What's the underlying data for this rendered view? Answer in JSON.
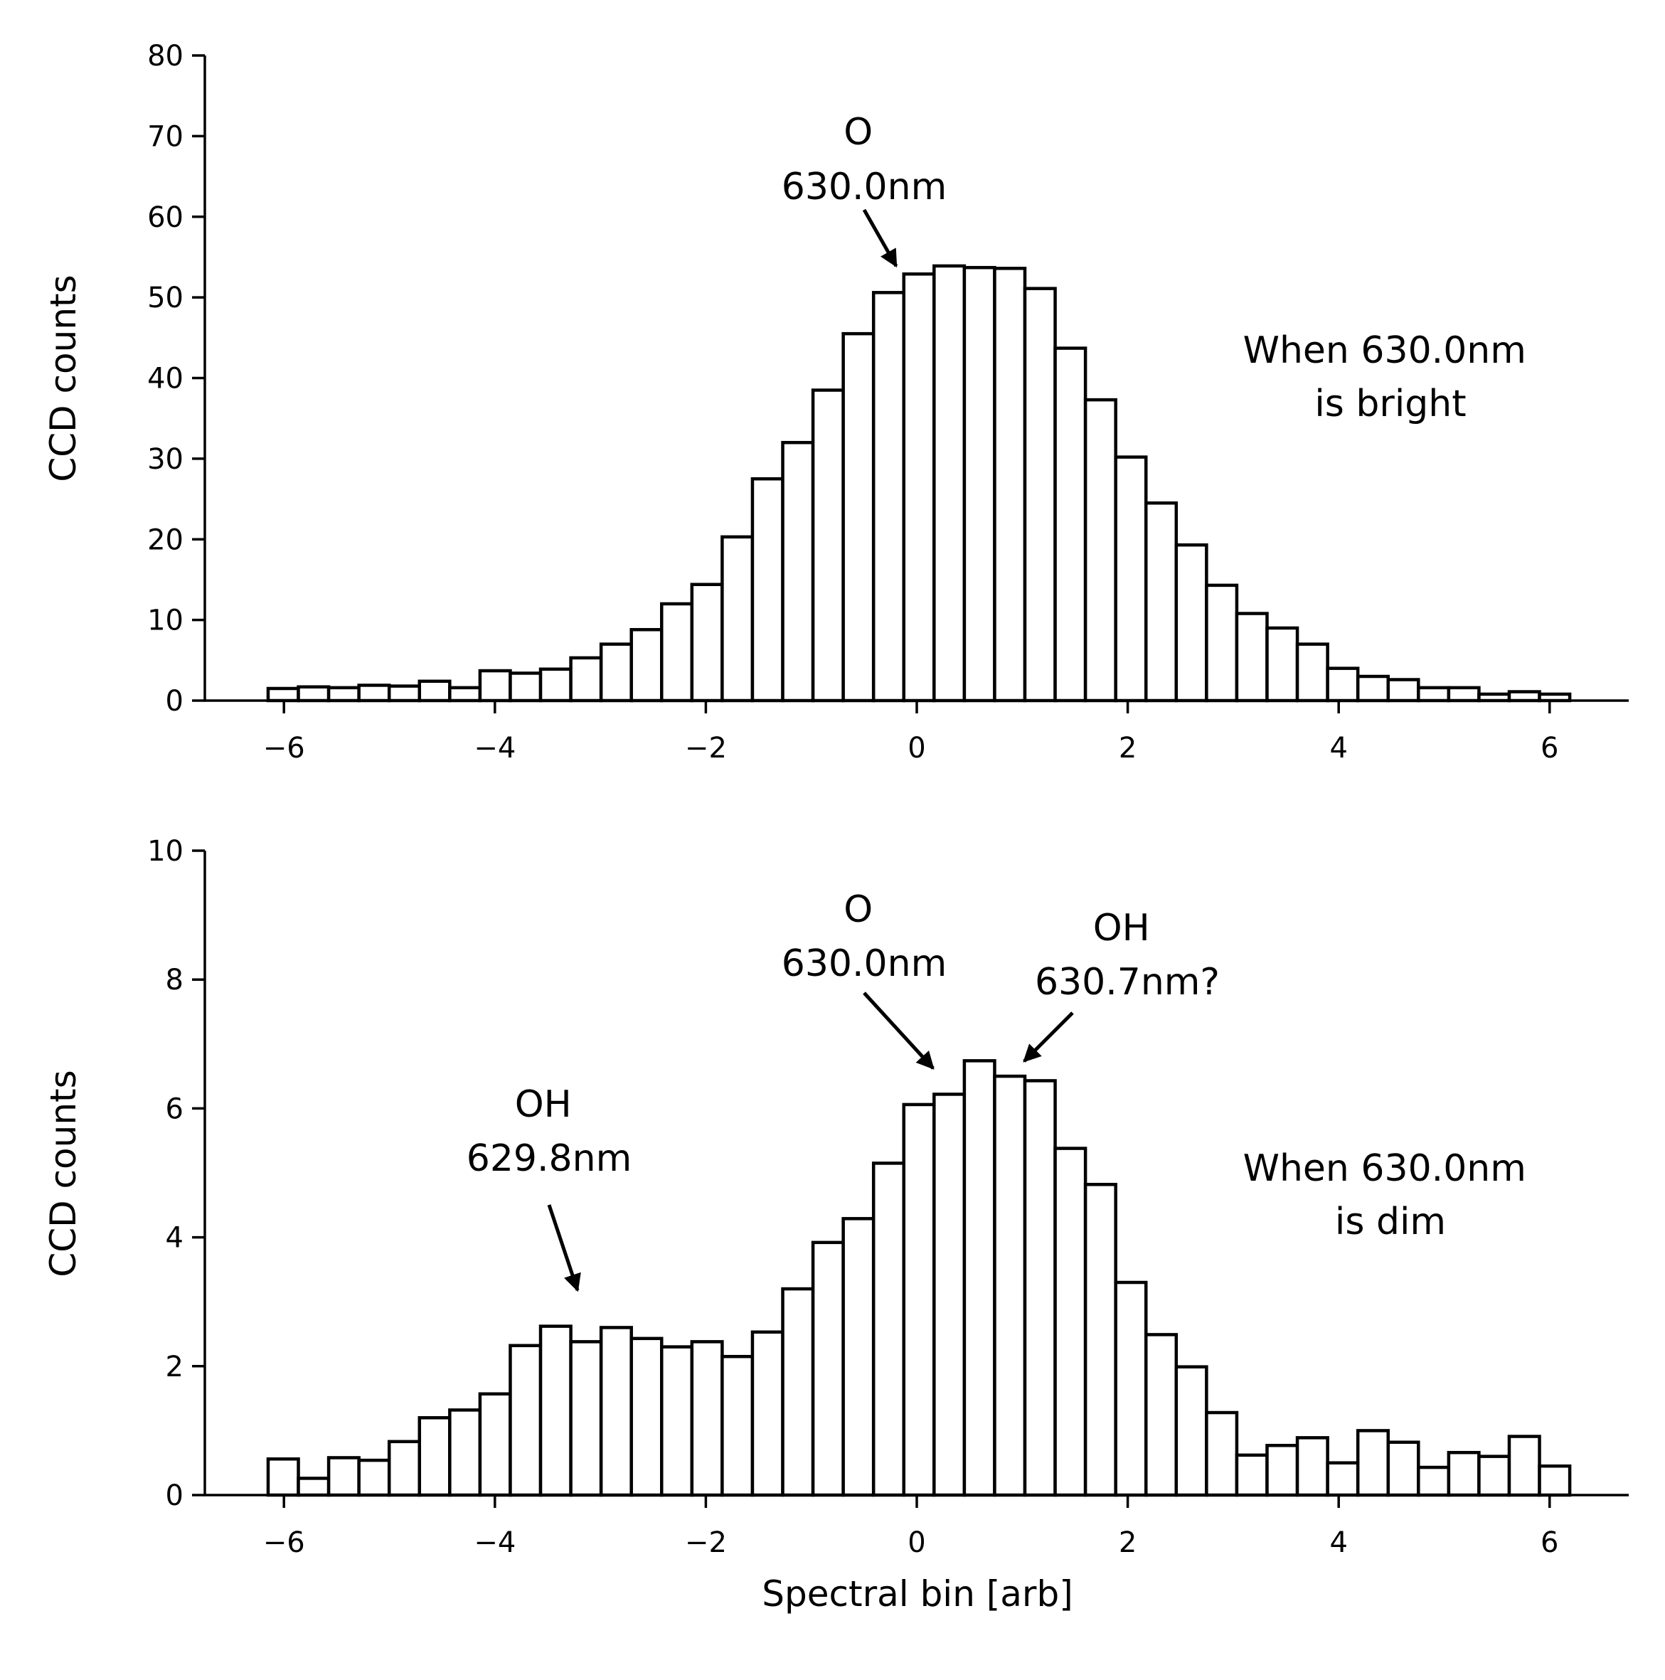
{
  "chart_data": [
    {
      "type": "bar",
      "ylabel": "CCD counts",
      "xlabel": "",
      "xlim": [
        -6.75,
        6.75
      ],
      "ylim": [
        0,
        80
      ],
      "xticks": [
        -6,
        -4,
        -2,
        0,
        2,
        4,
        6
      ],
      "yticks": [
        0,
        10,
        20,
        30,
        40,
        50,
        60,
        70,
        80
      ],
      "xtick_labels": [
        "−6",
        "−4",
        "−2",
        "0",
        "2",
        "4",
        "6"
      ],
      "ytick_labels": [
        "0",
        "10",
        "20",
        "30",
        "40",
        "50",
        "60",
        "70",
        "80"
      ],
      "bin_start": -6.15,
      "bin_width": 0.287,
      "values": [
        1.5,
        1.7,
        1.6,
        1.9,
        1.8,
        2.4,
        1.6,
        3.7,
        3.4,
        3.9,
        5.3,
        7.0,
        8.8,
        12.0,
        14.4,
        20.3,
        27.5,
        32.0,
        38.5,
        45.5,
        50.6,
        52.9,
        53.9,
        53.7,
        53.6,
        51.1,
        43.7,
        37.3,
        30.2,
        24.5,
        19.3,
        14.3,
        10.8,
        9.0,
        7.0,
        4.0,
        3.0,
        2.6,
        1.6,
        1.6,
        0.8,
        1.1,
        0.8
      ],
      "annotations": [
        {
          "lines": [
            "O",
            "630.0nm"
          ],
          "arrow_from": [
            -0.5,
            60
          ],
          "arrow_to": [
            -0.23,
            53.8
          ]
        },
        {
          "lines": [
            "When 630.0nm",
            "is bright"
          ]
        }
      ]
    },
    {
      "type": "bar",
      "ylabel": "CCD counts",
      "xlabel": "Spectral bin [arb]",
      "xlim": [
        -6.75,
        6.75
      ],
      "ylim": [
        0,
        10
      ],
      "xticks": [
        -6,
        -4,
        -2,
        0,
        2,
        4,
        6
      ],
      "yticks": [
        0,
        2,
        4,
        6,
        8,
        10
      ],
      "xtick_labels": [
        "−6",
        "−4",
        "−2",
        "0",
        "2",
        "4",
        "6"
      ],
      "ytick_labels": [
        "0",
        "2",
        "4",
        "6",
        "8",
        "10"
      ],
      "bin_start": -6.15,
      "bin_width": 0.287,
      "values": [
        0.56,
        0.26,
        0.58,
        0.54,
        0.83,
        1.2,
        1.32,
        1.57,
        2.32,
        2.62,
        2.38,
        2.6,
        2.43,
        2.3,
        2.38,
        2.15,
        2.53,
        3.2,
        3.92,
        4.29,
        5.15,
        6.06,
        6.22,
        6.74,
        6.5,
        6.43,
        5.38,
        4.82,
        3.3,
        2.49,
        1.99,
        1.28,
        0.62,
        0.77,
        0.89,
        0.5,
        1.0,
        0.82,
        0.43,
        0.66,
        0.6,
        0.91,
        0.45
      ],
      "annotations": [
        {
          "lines": [
            "OH",
            "629.8nm"
          ],
          "arrow_from": [
            -3.5,
            4.5
          ],
          "arrow_to": [
            -3.22,
            3.1
          ]
        },
        {
          "lines": [
            "O",
            "630.0nm"
          ],
          "arrow_from": [
            -0.5,
            7.8
          ],
          "arrow_to": [
            0.2,
            6.5
          ]
        },
        {
          "lines": [
            "OH",
            "630.7nm?"
          ],
          "arrow_from": [
            1.55,
            7.5
          ],
          "arrow_to": [
            1.0,
            6.65
          ]
        },
        {
          "lines": [
            "When 630.0nm",
            "is dim"
          ]
        }
      ]
    }
  ]
}
